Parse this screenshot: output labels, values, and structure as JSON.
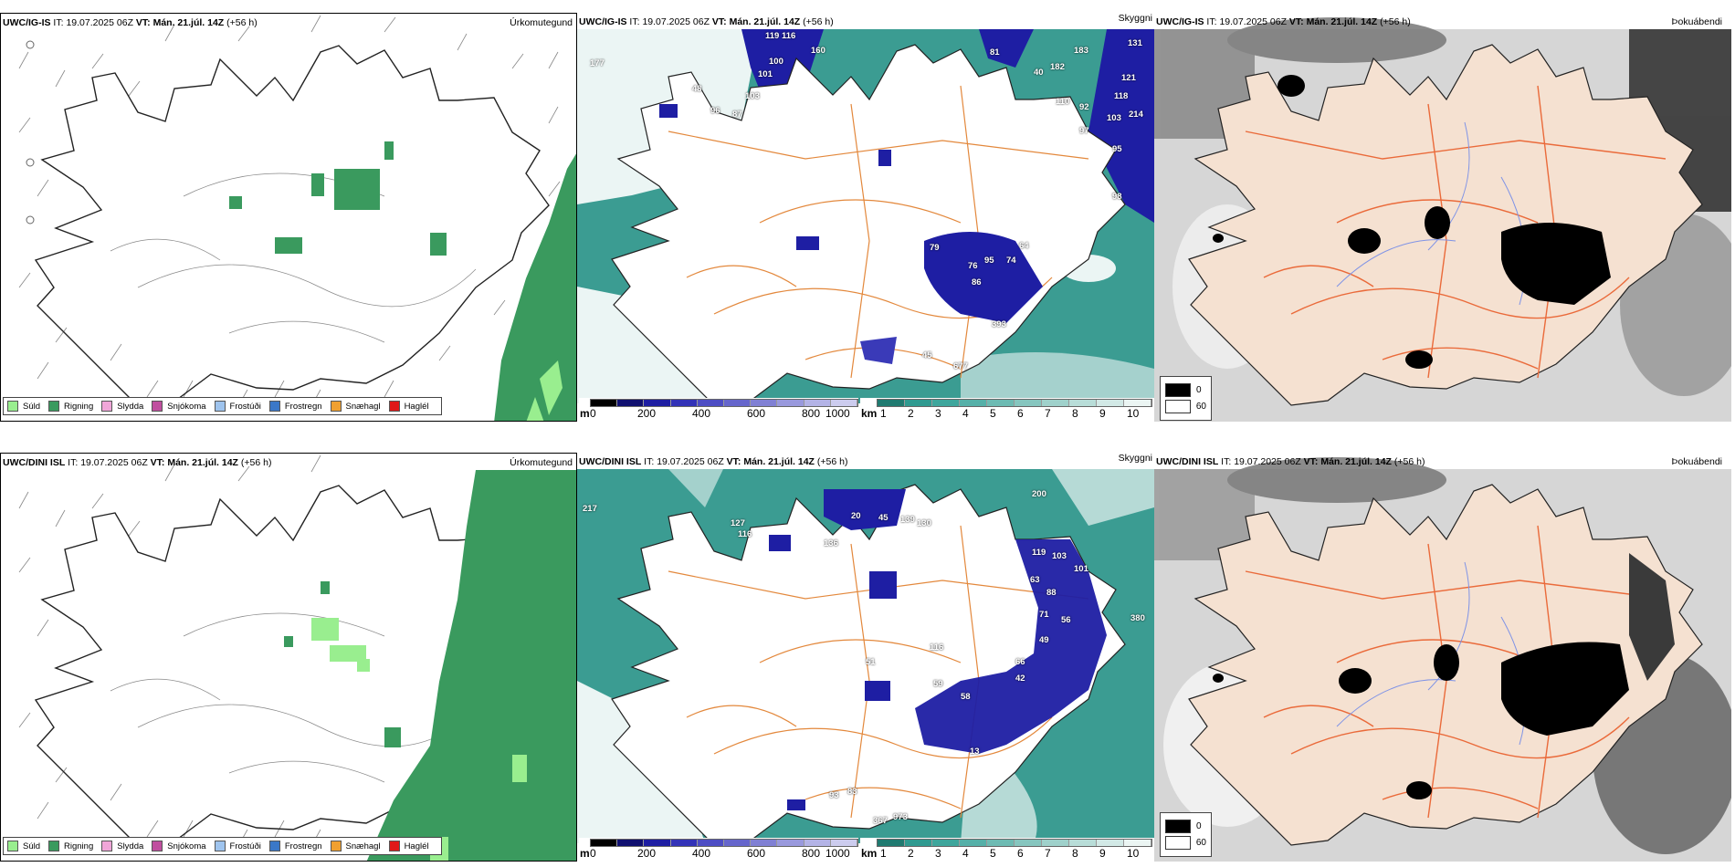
{
  "colors": {
    "rain": "#3a9a5e",
    "drizzle": "#99ee8f",
    "land": "#f5e1d1",
    "roads": "#ea6a3a",
    "roads_mid": "#e3883c",
    "rivers": "#7f93e6",
    "teal": "#2f9a90",
    "navy": "#1e1ea3"
  },
  "panels": {
    "top": {
      "precip": {
        "model": "UWC/IG-IS",
        "it_label": "IT:",
        "it_value": "19.07.2025 06Z",
        "vt_label": "VT:",
        "vt_value": "Mán. 21.júl. 14Z",
        "lead": "(+56 h)",
        "title": "Úrkomutegund"
      },
      "vis": {
        "model": "UWC/IG-IS",
        "it_label": "IT:",
        "it_value": "19.07.2025 06Z",
        "vt_label": "VT:",
        "vt_value": "Mán. 21.júl. 14Z",
        "lead": "(+56 h)",
        "title": "Skyggni",
        "labels": [
          "177",
          "119",
          "116",
          "160",
          "100",
          "101",
          "48",
          "103",
          "96",
          "87",
          "131",
          "183",
          "81",
          "40",
          "182",
          "121",
          "118",
          "92",
          "110",
          "103",
          "214",
          "97",
          "95",
          "98",
          "79",
          "95",
          "76",
          "74",
          "64",
          "86",
          "393",
          "45",
          "677"
        ]
      },
      "fog": {
        "model": "UWC/IG-IS",
        "it_label": "IT:",
        "it_value": "19.07.2025 06Z",
        "vt_label": "VT:",
        "vt_value": "Mán. 21.júl. 14Z",
        "lead": "(+56 h)",
        "title": "Þokuábendi"
      }
    },
    "bottom": {
      "precip": {
        "model": "UWC/DINI ISL",
        "it_label": "IT:",
        "it_value": "19.07.2025 06Z",
        "vt_label": "VT:",
        "vt_value": "Mán. 21.júl. 14Z",
        "lead": "(+56 h)",
        "title": "Úrkomutegund"
      },
      "vis": {
        "model": "UWC/DINI ISL",
        "it_label": "IT:",
        "it_value": "19.07.2025 06Z",
        "vt_label": "VT:",
        "vt_value": "Mán. 21.júl. 14Z",
        "lead": "(+56 h)",
        "title": "Skyggni",
        "labels": [
          "217",
          "127",
          "116",
          "136",
          "20",
          "45",
          "139",
          "130",
          "200",
          "119",
          "103",
          "101",
          "63",
          "88",
          "71",
          "56",
          "49",
          "66",
          "42",
          "51",
          "59",
          "58",
          "116",
          "13",
          "380",
          "367",
          "973",
          "83",
          "93"
        ]
      },
      "fog": {
        "model": "UWC/DINI ISL",
        "it_label": "IT:",
        "it_value": "19.07.2025 06Z",
        "vt_label": "VT:",
        "vt_value": "Mán. 21.júl. 14Z",
        "lead": "(+56 h)",
        "title": "Þokuábendi"
      }
    }
  },
  "precip_legend": [
    {
      "label": "Súld",
      "color": "#99ee8f"
    },
    {
      "label": "Rigning",
      "color": "#3a9a5e"
    },
    {
      "label": "Slydda",
      "color": "#f0a6d8"
    },
    {
      "label": "Snjókoma",
      "color": "#c04f9f"
    },
    {
      "label": "Frostúði",
      "color": "#9fc4ee"
    },
    {
      "label": "Frostregn",
      "color": "#3b78c8"
    },
    {
      "label": "Snæhagl",
      "color": "#f0a030"
    },
    {
      "label": "Haglél",
      "color": "#e01818"
    }
  ],
  "cloud_base_bar": {
    "unit": "m",
    "ticks": [
      "0",
      "200",
      "400",
      "600",
      "800",
      "1000"
    ],
    "colors": [
      "#000000",
      "#101070",
      "#1e1ea3",
      "#3333b8",
      "#4d4dc4",
      "#6666cc",
      "#8080d4",
      "#9999dd",
      "#b3b3e6",
      "#ccccee"
    ]
  },
  "visibility_bar": {
    "unit": "km",
    "ticks": [
      "1",
      "2",
      "3",
      "4",
      "5",
      "6",
      "7",
      "8",
      "9",
      "10"
    ],
    "colors": [
      "#1f7a70",
      "#2f9a90",
      "#3ea69c",
      "#55b0a8",
      "#6dbbb3",
      "#86c6bf",
      "#9fd1cb",
      "#b8ddd8",
      "#d2e9e6",
      "#ebf5f3"
    ]
  },
  "fog_legend": {
    "items": [
      {
        "label": "0",
        "color": "#000000"
      },
      {
        "label": "60",
        "color": "#ffffff"
      }
    ]
  }
}
